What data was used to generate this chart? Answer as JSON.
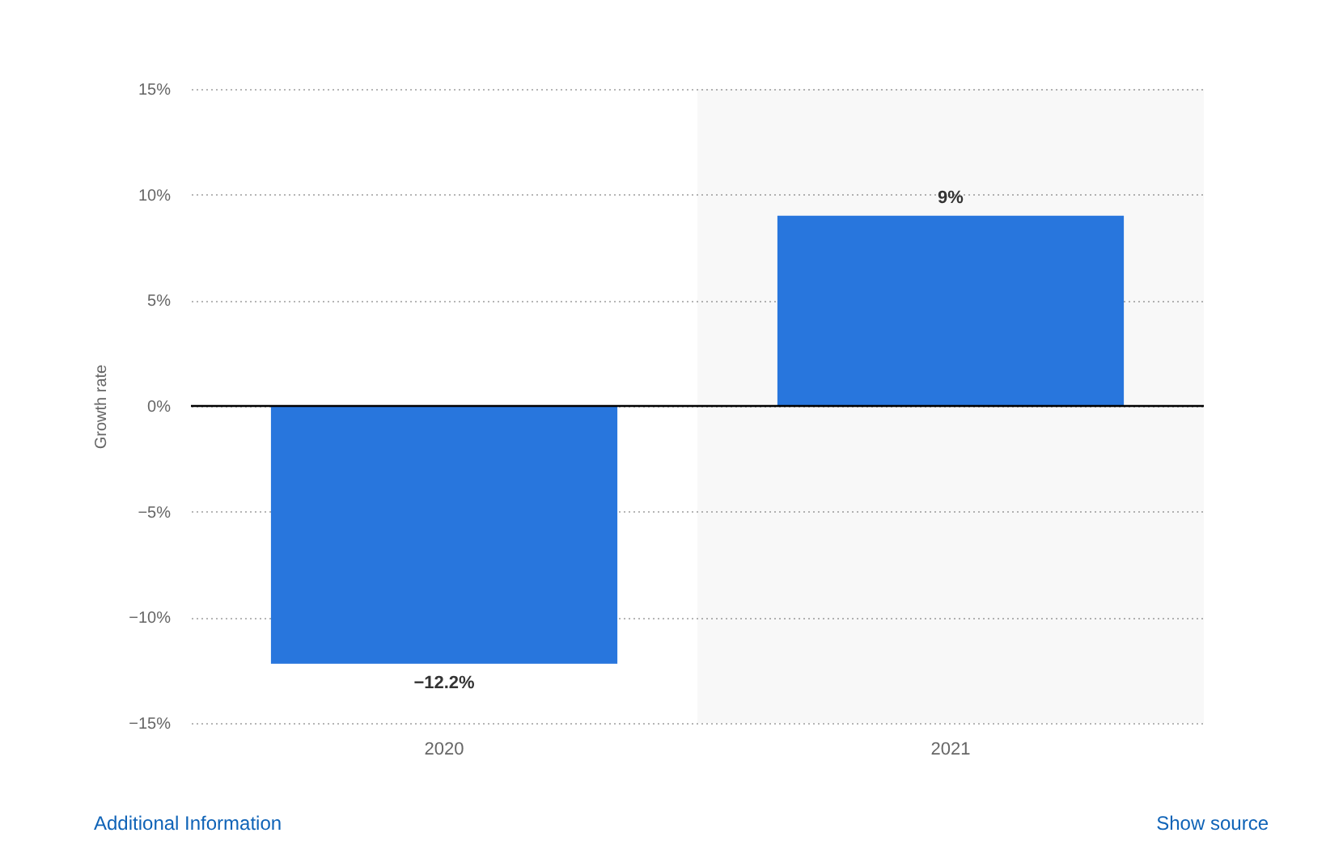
{
  "chart_data": {
    "type": "bar",
    "categories": [
      "2020",
      "2021"
    ],
    "values": [
      -12.2,
      9
    ],
    "color": "#2876dd",
    "value_labels": [
      "−12.2%",
      "9%"
    ],
    "ylabel": "Growth rate",
    "ylim": [
      -15,
      15
    ],
    "yticks": [
      {
        "value": -15,
        "label": "−15%"
      },
      {
        "value": -10,
        "label": "−10%"
      },
      {
        "value": -5,
        "label": "−5%"
      },
      {
        "value": 0,
        "label": "0%"
      },
      {
        "value": 5,
        "label": "5%"
      },
      {
        "value": 10,
        "label": "10%"
      },
      {
        "value": 15,
        "label": "15%"
      }
    ],
    "grid": "y",
    "ref_lines": [
      {
        "axis": "y",
        "value": 0,
        "color": "#000000"
      }
    ],
    "bands": [
      {
        "axis": "x",
        "from": "2021",
        "to": "2021",
        "color": "#f8f8f8"
      }
    ],
    "annotations": [
      "Additional Information",
      "Show source"
    ]
  }
}
